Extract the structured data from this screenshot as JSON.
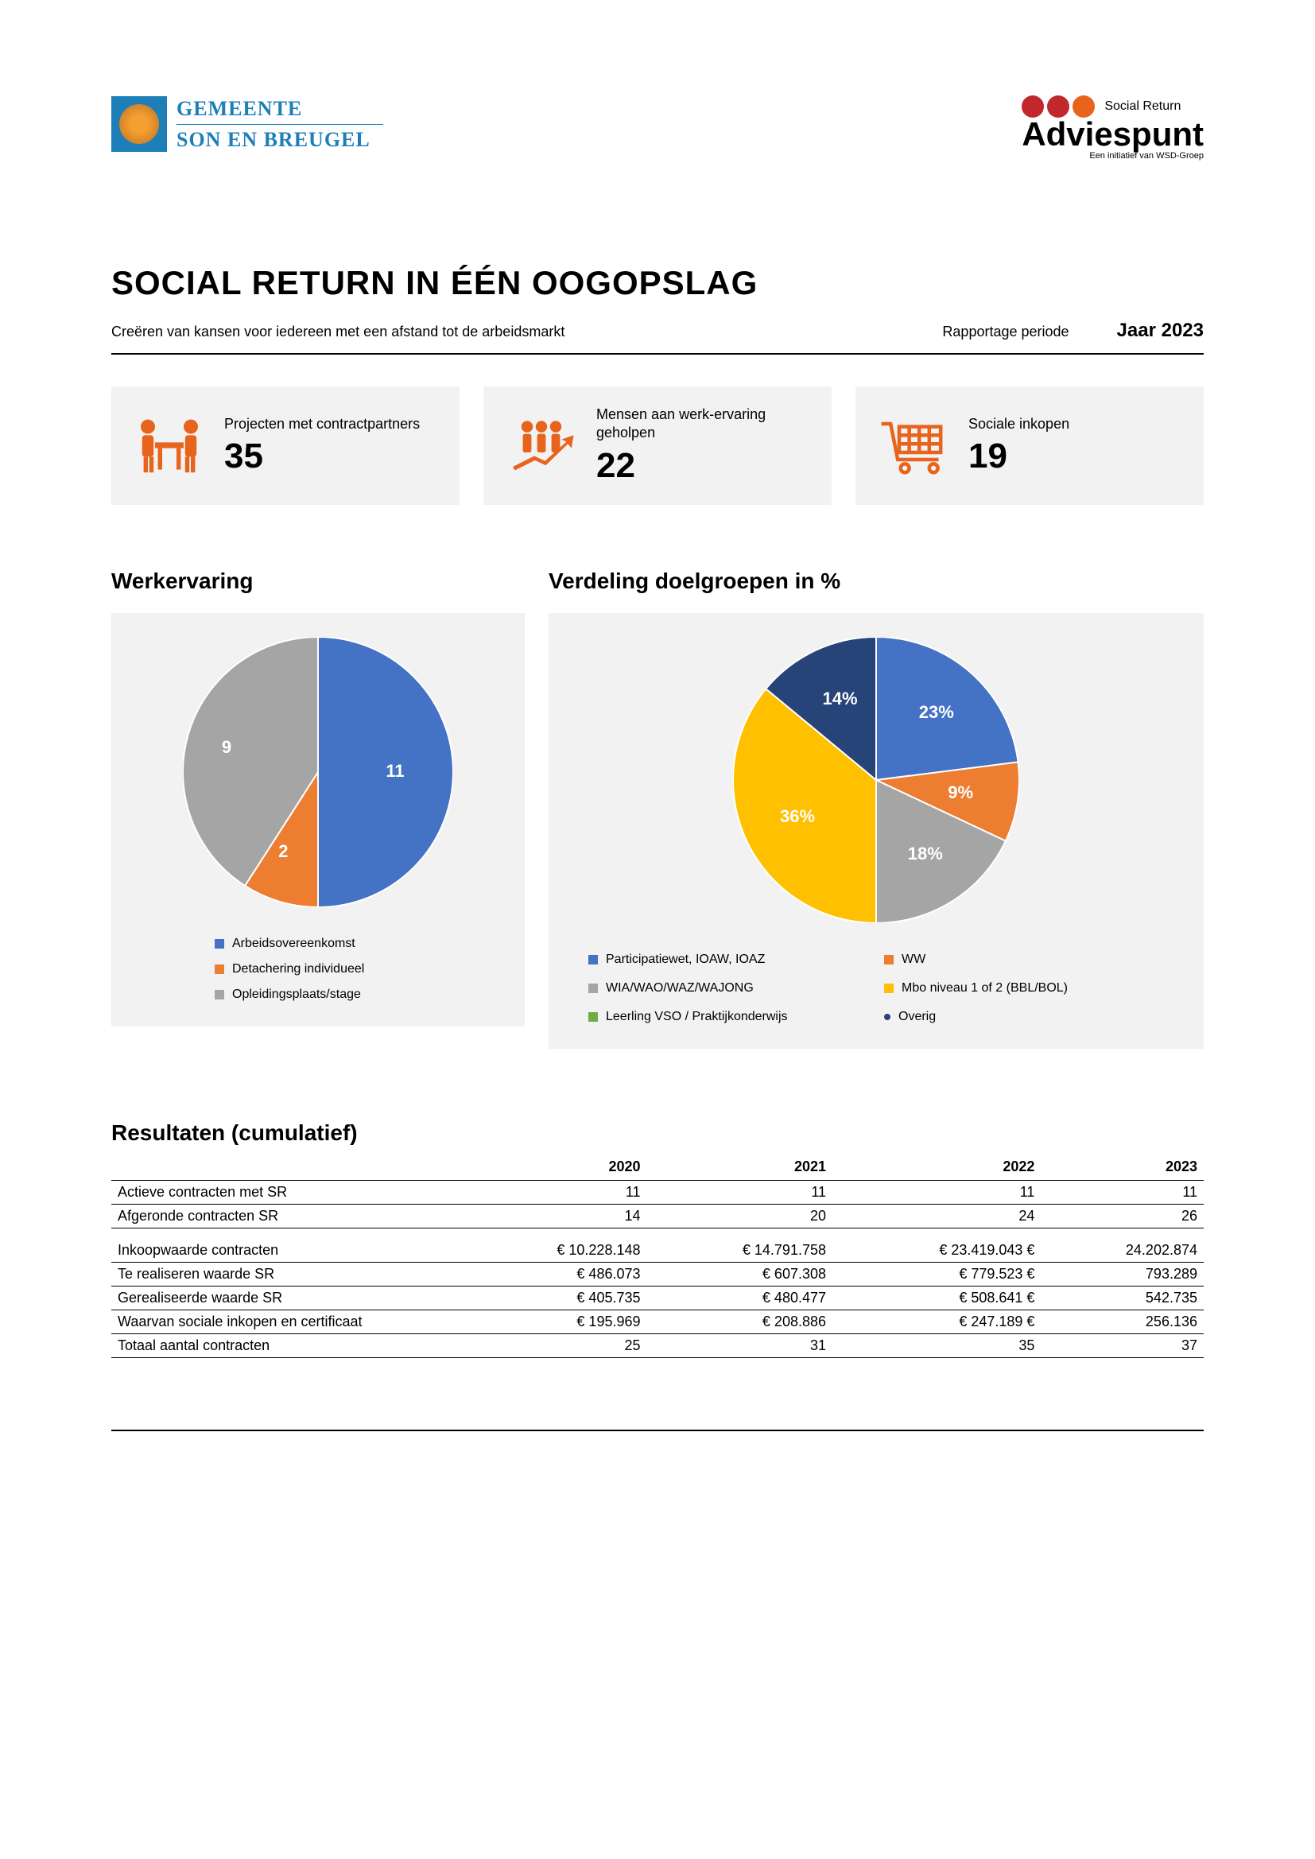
{
  "header": {
    "left_logo": {
      "line1": "GEMEENTE",
      "line2": "SON EN BREUGEL"
    },
    "right_logo": {
      "dot_colors": [
        "#c1272d",
        "#c1272d",
        "#e8631c"
      ],
      "sr_text": "Social Return",
      "name": "Adviespunt",
      "sub": "Een initiatief van WSD-Groep"
    }
  },
  "title": {
    "main": "SOCIAL RETURN IN ÉÉN OOGOPSLAG",
    "subtitle": "Creëren van kansen voor iedereen met een afstand tot de arbeidsmarkt",
    "period_label": "Rapportage periode",
    "year": "Jaar 2023"
  },
  "kpis": [
    {
      "label": "Projecten met contractpartners",
      "value": "35",
      "icon": "meeting"
    },
    {
      "label": "Mensen aan werk-ervaring geholpen",
      "value": "22",
      "icon": "people-growth"
    },
    {
      "label": "Sociale inkopen",
      "value": "19",
      "icon": "cart"
    }
  ],
  "icon_color": "#e8631c",
  "chart1": {
    "title": "Werkervaring",
    "type": "pie",
    "background": "#f2f2f2",
    "radius": 170,
    "slices": [
      {
        "label": "Arbeidsovereenkomst",
        "value": 11,
        "color": "#4472c4",
        "text_color": "#ffffff"
      },
      {
        "label": "Detachering individueel",
        "value": 2,
        "color": "#ed7d31",
        "text_color": "#ffffff"
      },
      {
        "label": "Opleidingsplaats/stage",
        "value": 9,
        "color": "#a5a5a5",
        "text_color": "#ffffff"
      }
    ]
  },
  "chart2": {
    "title": "Verdeling doelgroepen in %",
    "type": "pie",
    "background": "#f2f2f2",
    "radius": 180,
    "slices": [
      {
        "label": "Participatiewet, IOAW, IOAZ",
        "value": 23,
        "display": "23%",
        "color": "#4472c4",
        "text_color": "#ffffff"
      },
      {
        "label": "WW",
        "value": 9,
        "display": "9%",
        "color": "#ed7d31",
        "text_color": "#ffffff"
      },
      {
        "label": "WIA/WAO/WAZ/WAJONG",
        "value": 18,
        "display": "18%",
        "color": "#a5a5a5",
        "text_color": "#ffffff"
      },
      {
        "label": "Mbo niveau 1 of 2 (BBL/BOL)",
        "value": 36,
        "display": "36%",
        "color": "#ffc000",
        "text_color": "#ffffff"
      },
      {
        "label": "Leerling VSO / Praktijkonderwijs",
        "value": 0,
        "display": "",
        "color": "#70ad47",
        "text_color": "#ffffff"
      },
      {
        "label": "Overig",
        "value": 14,
        "display": "14%",
        "color": "#264478",
        "text_color": "#ffffff"
      }
    ],
    "legend_extra_bullet_color": "#264478"
  },
  "results": {
    "title": "Resultaten (cumulatief)",
    "years": [
      "2020",
      "2021",
      "2022",
      "2023"
    ],
    "rows_group1": [
      {
        "label": "Actieve contracten met SR",
        "cells": [
          "11",
          "11",
          "11",
          "11"
        ]
      },
      {
        "label": "Afgeronde contracten SR",
        "cells": [
          "14",
          "20",
          "24",
          "26"
        ]
      }
    ],
    "rows_group2": [
      {
        "label": "Inkoopwaarde contracten",
        "cells": [
          "€ 10.228.148",
          "€ 14.791.758",
          "€ 23.419.043  €",
          "24.202.874"
        ]
      },
      {
        "label": "Te realiseren waarde SR",
        "cells": [
          "€ 486.073",
          "€ 607.308",
          "€ 779.523  €",
          "793.289"
        ]
      },
      {
        "label": "Gerealiseerde waarde SR",
        "cells": [
          "€ 405.735",
          "€ 480.477",
          "€ 508.641  €",
          "542.735"
        ]
      },
      {
        "label": "Waarvan sociale inkopen en certificaat",
        "cells": [
          "€ 195.969",
          "€ 208.886",
          "€ 247.189  €",
          "256.136"
        ]
      },
      {
        "label": "Totaal aantal contracten",
        "cells": [
          "25",
          "31",
          "35",
          "37"
        ]
      }
    ]
  }
}
